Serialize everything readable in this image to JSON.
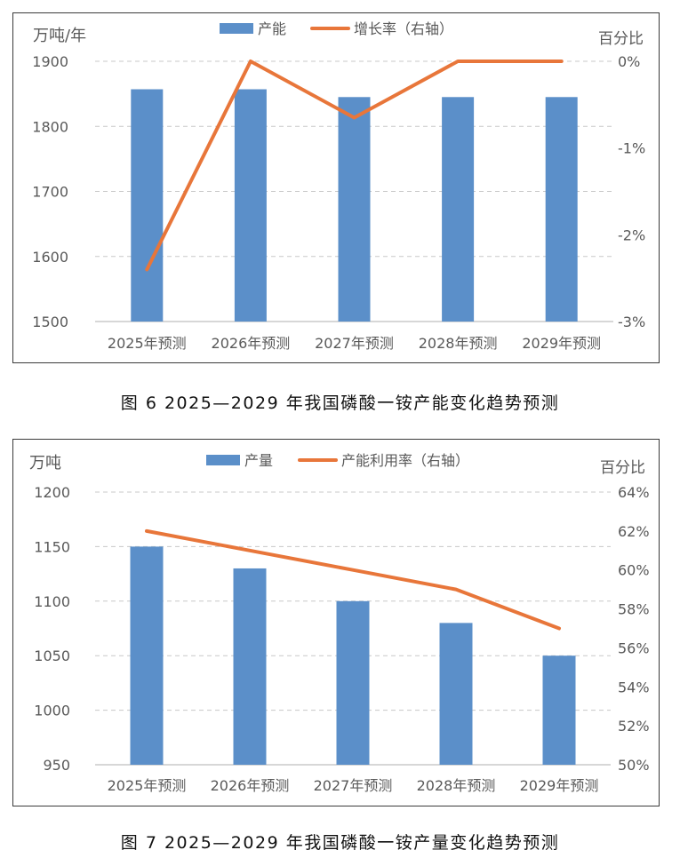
{
  "colors": {
    "bar": "#5b8fc9",
    "line": "#e8763a",
    "grid": "#c8c8c8",
    "axis_text": "#595959"
  },
  "chart_data": [
    {
      "type": "bar",
      "categories": [
        "2025年预测",
        "2026年预测",
        "2027年预测",
        "2028年预测",
        "2029年预测"
      ],
      "series": [
        {
          "name": "产能",
          "kind": "bar",
          "axis": "left",
          "values": [
            1857,
            1857,
            1845,
            1845,
            1845
          ]
        },
        {
          "name": "增长率（右轴）",
          "kind": "line",
          "axis": "right",
          "values": [
            -2.4,
            0,
            -0.65,
            0,
            0
          ]
        }
      ],
      "ylabel": "万吨/年",
      "ylabel_right": "百分比",
      "ylim": [
        1500,
        1900
      ],
      "y_ticks": [
        "1500",
        "1600",
        "1700",
        "1800",
        "1900"
      ],
      "ylim_right": [
        -3,
        0
      ],
      "y_ticks_right": [
        "-3%",
        "-2%",
        "-1%",
        "0%"
      ],
      "grid": true,
      "legend": "top-center",
      "caption": "图 6  2025—2029 年我国磷酸一铵产能变化趋势预测"
    },
    {
      "type": "bar",
      "categories": [
        "2025年预测",
        "2026年预测",
        "2027年预测",
        "2028年预测",
        "2029年预测"
      ],
      "series": [
        {
          "name": "产量",
          "kind": "bar",
          "axis": "left",
          "values": [
            1150,
            1130,
            1100,
            1080,
            1050
          ]
        },
        {
          "name": "产能利用率（右轴）",
          "kind": "line",
          "axis": "right",
          "values": [
            62,
            61,
            60,
            59,
            57
          ]
        }
      ],
      "ylabel": "万吨",
      "ylabel_right": "百分比",
      "ylim": [
        950,
        1200
      ],
      "y_ticks": [
        "950",
        "1000",
        "1050",
        "1100",
        "1150",
        "1200"
      ],
      "ylim_right": [
        50,
        64
      ],
      "y_ticks_right": [
        "50%",
        "52%",
        "54%",
        "56%",
        "58%",
        "60%",
        "62%",
        "64%"
      ],
      "grid": true,
      "legend": "top-center",
      "caption": "图 7  2025—2029 年我国磷酸一铵产量变化趋势预测"
    }
  ]
}
